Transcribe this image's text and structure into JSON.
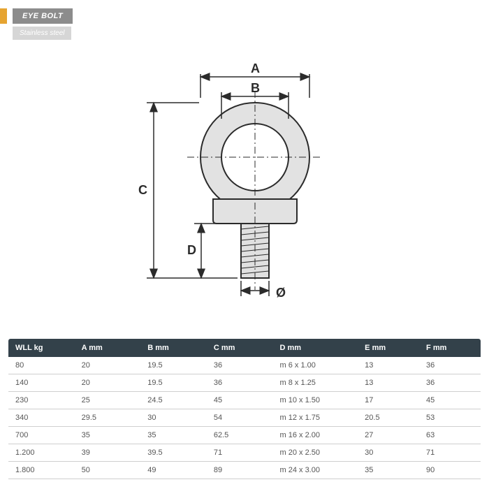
{
  "header": {
    "title": "EYE BOLT",
    "subtitle": "Stainless steel"
  },
  "diagram": {
    "labels": {
      "A": "A",
      "B": "B",
      "C": "C",
      "D": "D",
      "diam": "Ø"
    },
    "stroke": "#2b2b2b",
    "fill": "#d9d9d9"
  },
  "table": {
    "columns": [
      "WLL kg",
      "A mm",
      "B mm",
      "C mm",
      "D mm",
      "E mm",
      "F mm"
    ],
    "rows": [
      [
        "80",
        "20",
        "19.5",
        "36",
        "m 6 x 1.00",
        "13",
        "36"
      ],
      [
        "140",
        "20",
        "19.5",
        "36",
        "m 8 x 1.25",
        "13",
        "36"
      ],
      [
        "230",
        "25",
        "24.5",
        "45",
        "m 10 x 1.50",
        "17",
        "45"
      ],
      [
        "340",
        "29.5",
        "30",
        "54",
        "m 12 x 1.75",
        "20.5",
        "53"
      ],
      [
        "700",
        "35",
        "35",
        "62.5",
        "m 16 x 2.00",
        "27",
        "63"
      ],
      [
        "1.200",
        "39",
        "39.5",
        "71",
        "m 20 x 2.50",
        "30",
        "71"
      ],
      [
        "1.800",
        "50",
        "49",
        "89",
        "m 24 x 3.00",
        "35",
        "90"
      ]
    ],
    "header_bg": "#33414a",
    "header_fg": "#ffffff",
    "cell_fg": "#555555",
    "border": "#cfcfcf"
  }
}
